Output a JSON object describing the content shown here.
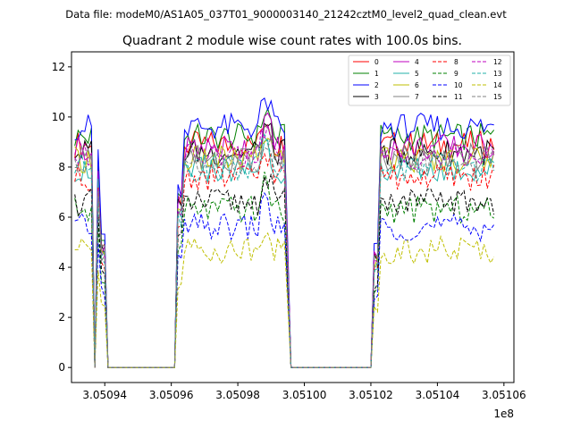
{
  "chart_data": {
    "type": "line",
    "suptitle": "Data file: modeM0/AS1A05_037T01_9000003140_21242cztM0_level2_quad_clean.evt",
    "title": "Quadrant 2 module wise count rates with 100.0s bins.",
    "xlabel": "",
    "ylabel": "",
    "x_offset_label": "1e8",
    "xlim": [
      305093000,
      305106300
    ],
    "ylim": [
      -0.6,
      12.6
    ],
    "xticks": [
      305094000,
      305096000,
      305098000,
      305100000,
      305102000,
      305104000,
      305106000
    ],
    "xtick_labels": [
      "3.05094",
      "3.05096",
      "3.05098",
      "3.05100",
      "3.05102",
      "3.05104",
      "3.05106"
    ],
    "yticks": [
      0,
      2,
      4,
      6,
      8,
      10,
      12
    ],
    "ytick_labels": [
      "0",
      "2",
      "4",
      "6",
      "8",
      "10",
      "12"
    ],
    "bin_width_s": 100,
    "segments": [
      {
        "start": 305093100,
        "n": 6
      },
      {
        "start": 305093700,
        "n": 2
      },
      {
        "start": 305093900,
        "n": 3
      },
      {
        "start": 305094200,
        "n": 21
      },
      {
        "start": 305096300,
        "n": 25
      },
      {
        "start": 305098800,
        "n": 4
      },
      {
        "start": 305099200,
        "n": 3
      },
      {
        "start": 305099500,
        "n": 3
      },
      {
        "start": 305099800,
        "n": 24
      },
      {
        "start": 305102200,
        "n": 36
      }
    ],
    "legend": {
      "placement": "top-right",
      "columns": 4
    },
    "series": [
      {
        "name": "0",
        "color": "#ff0000",
        "dash": "solid",
        "level": 8.9
      },
      {
        "name": "1",
        "color": "#008000",
        "dash": "solid",
        "level": 9.2
      },
      {
        "name": "2",
        "color": "#0000ff",
        "dash": "solid",
        "level": 9.6
      },
      {
        "name": "3",
        "color": "#000000",
        "dash": "solid",
        "level": 8.6
      },
      {
        "name": "4",
        "color": "#bf00bf",
        "dash": "solid",
        "level": 8.8
      },
      {
        "name": "5",
        "color": "#20b2aa",
        "dash": "solid",
        "level": 7.9
      },
      {
        "name": "6",
        "color": "#bfbf00",
        "dash": "solid",
        "level": 8.3
      },
      {
        "name": "7",
        "color": "#808080",
        "dash": "solid",
        "level": 8.4
      },
      {
        "name": "8",
        "color": "#ff0000",
        "dash": "dashed",
        "level": 7.6
      },
      {
        "name": "9",
        "color": "#008000",
        "dash": "dashed",
        "level": 6.3
      },
      {
        "name": "10",
        "color": "#0000ff",
        "dash": "dashed",
        "level": 5.6
      },
      {
        "name": "11",
        "color": "#000000",
        "dash": "dashed",
        "level": 6.6
      },
      {
        "name": "12",
        "color": "#bf00bf",
        "dash": "dashed",
        "level": 8.4
      },
      {
        "name": "13",
        "color": "#20b2aa",
        "dash": "dashed",
        "level": 8.0
      },
      {
        "name": "14",
        "color": "#bfbf00",
        "dash": "dashed",
        "level": 4.7
      },
      {
        "name": "15",
        "color": "#808080",
        "dash": "dashed",
        "level": 8.2
      }
    ]
  }
}
